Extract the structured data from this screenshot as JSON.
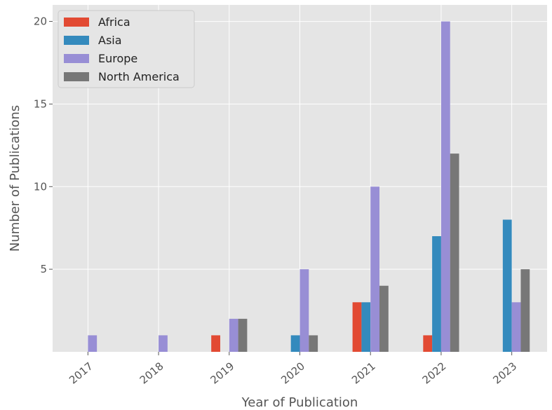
{
  "chart_data": {
    "type": "bar",
    "title": "",
    "xlabel": "Year of Publication",
    "ylabel": "Number of Publications",
    "categories": [
      "2017",
      "2018",
      "2019",
      "2020",
      "2021",
      "2022",
      "2023"
    ],
    "series": [
      {
        "name": "Africa",
        "color": "#E24A33",
        "values": [
          0,
          0,
          1,
          0,
          3,
          1,
          0
        ]
      },
      {
        "name": "Asia",
        "color": "#348ABD",
        "values": [
          0,
          0,
          0,
          1,
          3,
          7,
          8
        ]
      },
      {
        "name": "Europe",
        "color": "#988ED5",
        "values": [
          1,
          1,
          2,
          5,
          10,
          20,
          3
        ]
      },
      {
        "name": "North America",
        "color": "#777777",
        "values": [
          0,
          0,
          2,
          1,
          4,
          12,
          5
        ]
      }
    ],
    "yticks": [
      5,
      10,
      15,
      20
    ],
    "ylim": [
      0,
      21
    ],
    "grid": true,
    "legend_position": "top-left",
    "style": {
      "plot_background": "#E5E5E5",
      "grid_color": "#FFFFFF",
      "text_color": "#555555"
    }
  }
}
